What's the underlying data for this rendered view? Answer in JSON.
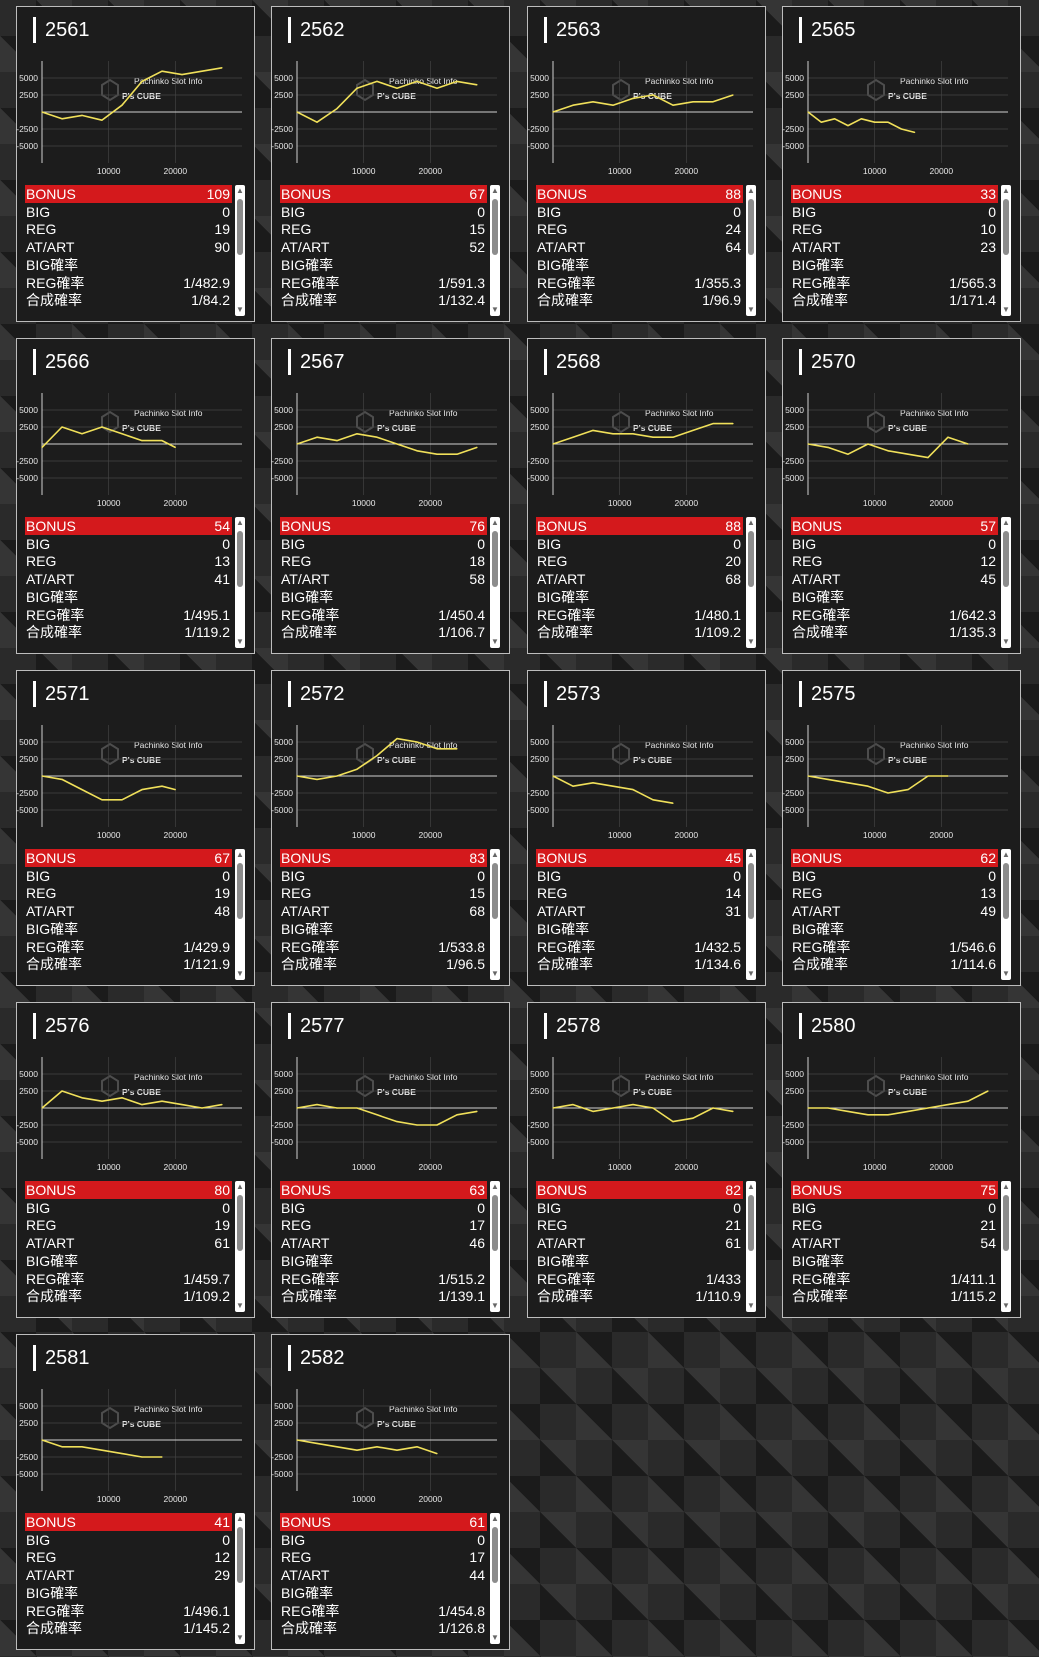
{
  "labels": {
    "bonus": "BONUS",
    "big": "BIG",
    "reg": "REG",
    "atart": "AT/ART",
    "big_rate": "BIG確率",
    "reg_rate": "REG確率",
    "combined_rate": "合成確率"
  },
  "axis": {
    "y_ticks": [
      "5000",
      "2500",
      "-2500",
      "-5000"
    ],
    "x_ticks": [
      "10000",
      "20000"
    ]
  },
  "watermark": {
    "text": "P's CUBE",
    "sub": "Pachinko Slot Info"
  },
  "colors": {
    "line": "#f0e05a",
    "bonus_bar": "#d4191c",
    "panel": "#1c1c1c"
  },
  "chart_data": [
    {
      "type": "line",
      "machine": "2561",
      "x": [
        0,
        3000,
        6000,
        9000,
        12000,
        15000,
        18000,
        21000,
        24000,
        27000
      ],
      "values": [
        0,
        -1000,
        -500,
        -1200,
        1000,
        4500,
        6000,
        5500,
        6000,
        6500
      ]
    },
    {
      "type": "line",
      "machine": "2562",
      "x": [
        0,
        3000,
        6000,
        9000,
        12000,
        15000,
        18000,
        21000,
        24000,
        27000
      ],
      "values": [
        0,
        -1500,
        500,
        3500,
        4500,
        3500,
        4500,
        3500,
        4500,
        4000
      ]
    },
    {
      "type": "line",
      "machine": "2563",
      "x": [
        0,
        3000,
        6000,
        9000,
        12000,
        15000,
        18000,
        21000,
        24000,
        27000
      ],
      "values": [
        0,
        1000,
        1500,
        1000,
        2000,
        2500,
        1000,
        1500,
        1500,
        2500
      ]
    },
    {
      "type": "line",
      "machine": "2565",
      "x": [
        0,
        2000,
        4000,
        6000,
        8000,
        10000,
        12000,
        14000,
        16000
      ],
      "values": [
        0,
        -1500,
        -1000,
        -2000,
        -1000,
        -1500,
        -1500,
        -2500,
        -3000
      ]
    },
    {
      "type": "line",
      "machine": "2566",
      "x": [
        0,
        3000,
        6000,
        9000,
        12000,
        15000,
        18000,
        20000
      ],
      "values": [
        -500,
        2500,
        1500,
        2500,
        1500,
        500,
        500,
        -500
      ]
    },
    {
      "type": "line",
      "machine": "2567",
      "x": [
        0,
        3000,
        6000,
        9000,
        12000,
        15000,
        18000,
        21000,
        24000,
        27000
      ],
      "values": [
        0,
        1000,
        500,
        1500,
        1000,
        0,
        -1000,
        -1500,
        -1500,
        -500
      ]
    },
    {
      "type": "line",
      "machine": "2568",
      "x": [
        0,
        3000,
        6000,
        9000,
        12000,
        15000,
        18000,
        21000,
        24000,
        27000
      ],
      "values": [
        0,
        1000,
        2000,
        1500,
        1500,
        1000,
        1000,
        2000,
        3000,
        3000
      ]
    },
    {
      "type": "line",
      "machine": "2570",
      "x": [
        0,
        3000,
        6000,
        9000,
        12000,
        15000,
        18000,
        21000,
        24000
      ],
      "values": [
        0,
        -500,
        -1500,
        0,
        -1000,
        -1500,
        -2000,
        1000,
        0
      ]
    },
    {
      "type": "line",
      "machine": "2571",
      "x": [
        0,
        3000,
        6000,
        9000,
        12000,
        15000,
        18000,
        20000
      ],
      "values": [
        0,
        -500,
        -2000,
        -3500,
        -3500,
        -2000,
        -1500,
        -2000
      ]
    },
    {
      "type": "line",
      "machine": "2572",
      "x": [
        0,
        3000,
        6000,
        9000,
        12000,
        15000,
        18000,
        21000,
        24000
      ],
      "values": [
        0,
        -500,
        0,
        1000,
        3000,
        5500,
        5000,
        4000,
        4000
      ]
    },
    {
      "type": "line",
      "machine": "2573",
      "x": [
        0,
        3000,
        6000,
        9000,
        12000,
        15000,
        18000
      ],
      "values": [
        0,
        -1500,
        -1000,
        -1500,
        -2000,
        -3500,
        -4000
      ]
    },
    {
      "type": "line",
      "machine": "2575",
      "x": [
        0,
        3000,
        6000,
        9000,
        12000,
        15000,
        18000,
        21000
      ],
      "values": [
        0,
        -500,
        -1000,
        -1500,
        -2500,
        -2000,
        0,
        0
      ]
    },
    {
      "type": "line",
      "machine": "2576",
      "x": [
        0,
        3000,
        6000,
        9000,
        12000,
        15000,
        18000,
        21000,
        24000,
        27000
      ],
      "values": [
        0,
        2500,
        1500,
        1000,
        1500,
        500,
        1000,
        500,
        0,
        500
      ]
    },
    {
      "type": "line",
      "machine": "2577",
      "x": [
        0,
        3000,
        6000,
        9000,
        12000,
        15000,
        18000,
        21000,
        24000,
        27000
      ],
      "values": [
        0,
        500,
        0,
        0,
        -1000,
        -2000,
        -2500,
        -2500,
        -1000,
        -500
      ]
    },
    {
      "type": "line",
      "machine": "2578",
      "x": [
        0,
        3000,
        6000,
        9000,
        12000,
        15000,
        18000,
        21000,
        24000,
        27000
      ],
      "values": [
        0,
        500,
        -500,
        0,
        500,
        0,
        -2000,
        -1500,
        0,
        -500
      ]
    },
    {
      "type": "line",
      "machine": "2580",
      "x": [
        0,
        3000,
        6000,
        9000,
        12000,
        15000,
        18000,
        21000,
        24000,
        27000
      ],
      "values": [
        0,
        0,
        -500,
        -1000,
        -1000,
        -500,
        0,
        500,
        1000,
        2500
      ]
    },
    {
      "type": "line",
      "machine": "2581",
      "x": [
        0,
        3000,
        6000,
        9000,
        12000,
        15000,
        18000
      ],
      "values": [
        0,
        -1000,
        -1000,
        -1500,
        -2000,
        -2500,
        -2500
      ]
    },
    {
      "type": "line",
      "machine": "2582",
      "x": [
        0,
        3000,
        6000,
        9000,
        12000,
        15000,
        18000,
        21000
      ],
      "values": [
        0,
        -500,
        -1000,
        -1500,
        -1000,
        -1500,
        -1000,
        -2000
      ]
    }
  ],
  "machines": [
    {
      "id": "2561",
      "bonus": "109",
      "big": "0",
      "reg": "19",
      "atart": "90",
      "big_rate": "",
      "reg_rate": "1/482.9",
      "combined": "1/84.2"
    },
    {
      "id": "2562",
      "bonus": "67",
      "big": "0",
      "reg": "15",
      "atart": "52",
      "big_rate": "",
      "reg_rate": "1/591.3",
      "combined": "1/132.4"
    },
    {
      "id": "2563",
      "bonus": "88",
      "big": "0",
      "reg": "24",
      "atart": "64",
      "big_rate": "",
      "reg_rate": "1/355.3",
      "combined": "1/96.9"
    },
    {
      "id": "2565",
      "bonus": "33",
      "big": "0",
      "reg": "10",
      "atart": "23",
      "big_rate": "",
      "reg_rate": "1/565.3",
      "combined": "1/171.4"
    },
    {
      "id": "2566",
      "bonus": "54",
      "big": "0",
      "reg": "13",
      "atart": "41",
      "big_rate": "",
      "reg_rate": "1/495.1",
      "combined": "1/119.2"
    },
    {
      "id": "2567",
      "bonus": "76",
      "big": "0",
      "reg": "18",
      "atart": "58",
      "big_rate": "",
      "reg_rate": "1/450.4",
      "combined": "1/106.7"
    },
    {
      "id": "2568",
      "bonus": "88",
      "big": "0",
      "reg": "20",
      "atart": "68",
      "big_rate": "",
      "reg_rate": "1/480.1",
      "combined": "1/109.2"
    },
    {
      "id": "2570",
      "bonus": "57",
      "big": "0",
      "reg": "12",
      "atart": "45",
      "big_rate": "",
      "reg_rate": "1/642.3",
      "combined": "1/135.3"
    },
    {
      "id": "2571",
      "bonus": "67",
      "big": "0",
      "reg": "19",
      "atart": "48",
      "big_rate": "",
      "reg_rate": "1/429.9",
      "combined": "1/121.9"
    },
    {
      "id": "2572",
      "bonus": "83",
      "big": "0",
      "reg": "15",
      "atart": "68",
      "big_rate": "",
      "reg_rate": "1/533.8",
      "combined": "1/96.5"
    },
    {
      "id": "2573",
      "bonus": "45",
      "big": "0",
      "reg": "14",
      "atart": "31",
      "big_rate": "",
      "reg_rate": "1/432.5",
      "combined": "1/134.6"
    },
    {
      "id": "2575",
      "bonus": "62",
      "big": "0",
      "reg": "13",
      "atart": "49",
      "big_rate": "",
      "reg_rate": "1/546.6",
      "combined": "1/114.6"
    },
    {
      "id": "2576",
      "bonus": "80",
      "big": "0",
      "reg": "19",
      "atart": "61",
      "big_rate": "",
      "reg_rate": "1/459.7",
      "combined": "1/109.2"
    },
    {
      "id": "2577",
      "bonus": "63",
      "big": "0",
      "reg": "17",
      "atart": "46",
      "big_rate": "",
      "reg_rate": "1/515.2",
      "combined": "1/139.1"
    },
    {
      "id": "2578",
      "bonus": "82",
      "big": "0",
      "reg": "21",
      "atart": "61",
      "big_rate": "",
      "reg_rate": "1/433",
      "combined": "1/110.9"
    },
    {
      "id": "2580",
      "bonus": "75",
      "big": "0",
      "reg": "21",
      "atart": "54",
      "big_rate": "",
      "reg_rate": "1/411.1",
      "combined": "1/115.2"
    },
    {
      "id": "2581",
      "bonus": "41",
      "big": "0",
      "reg": "12",
      "atart": "29",
      "big_rate": "",
      "reg_rate": "1/496.1",
      "combined": "1/145.2"
    },
    {
      "id": "2582",
      "bonus": "61",
      "big": "0",
      "reg": "17",
      "atart": "44",
      "big_rate": "",
      "reg_rate": "1/454.8",
      "combined": "1/126.8"
    }
  ]
}
